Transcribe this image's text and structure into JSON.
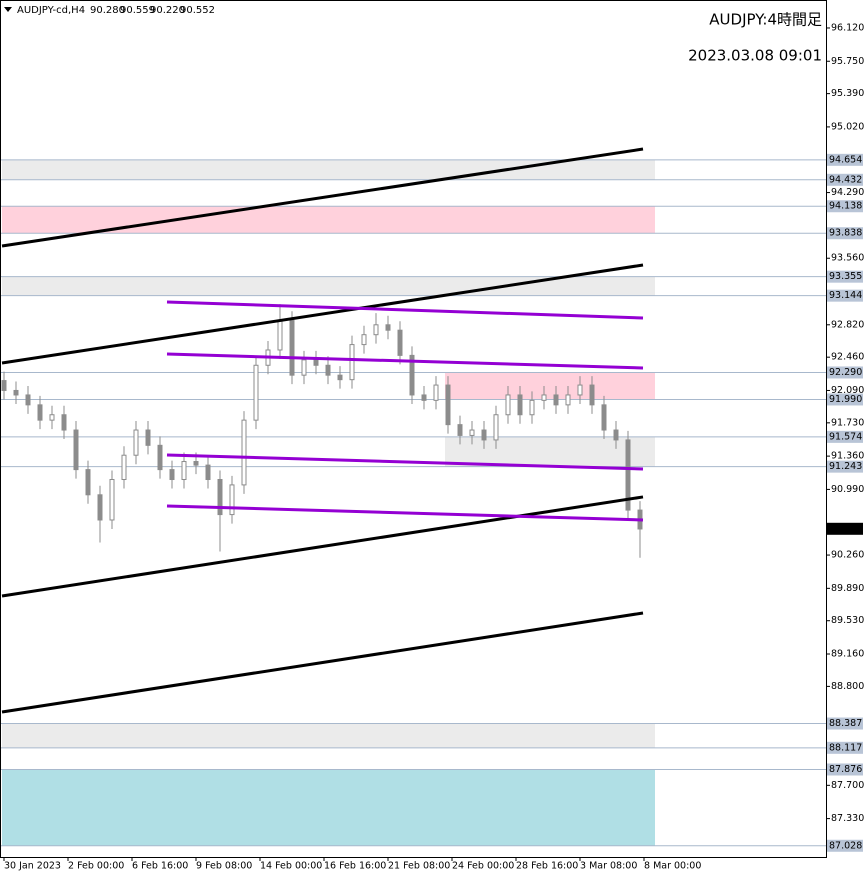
{
  "chart_data": {
    "type": "candlestick",
    "symbol": "AUDJPY-cd,H4",
    "ohlc_text": [
      "90.280",
      "90.559",
      "90.220",
      "90.552"
    ],
    "annotations": [
      "AUDJPY:4時間足",
      "2023.03.08 09:01"
    ],
    "time_labels": [
      "30 Jan 2023",
      "2 Feb 00:00",
      "6 Feb 16:00",
      "9 Feb 08:00",
      "14 Feb 00:00",
      "16 Feb 16:00",
      "21 Feb 08:00",
      "24 Feb 00:00",
      "28 Feb 16:00",
      "3 Mar 08:00",
      "8 Mar 00:00"
    ],
    "ylim": [
      86.892,
      96.431
    ],
    "yticks": [
      {
        "value": 96.12,
        "label": "96.120"
      },
      {
        "value": 95.75,
        "label": "95.750"
      },
      {
        "value": 95.39,
        "label": "95.390"
      },
      {
        "value": 95.02,
        "label": "95.020"
      },
      {
        "value": 94.29,
        "label": "94.290"
      },
      {
        "value": 93.56,
        "label": "93.560"
      },
      {
        "value": 92.82,
        "label": "92.820"
      },
      {
        "value": 92.46,
        "label": "92.460"
      },
      {
        "value": 92.09,
        "label": "92.090"
      },
      {
        "value": 91.73,
        "label": "91.730"
      },
      {
        "value": 91.36,
        "label": "91.360"
      },
      {
        "value": 90.99,
        "label": "90.990"
      },
      {
        "value": 90.26,
        "label": "90.260"
      },
      {
        "value": 89.89,
        "label": "89.890"
      },
      {
        "value": 89.53,
        "label": "89.530"
      },
      {
        "value": 89.16,
        "label": "89.160"
      },
      {
        "value": 88.8,
        "label": "88.800"
      },
      {
        "value": 87.7,
        "label": "87.700"
      },
      {
        "value": 87.33,
        "label": "87.330"
      }
    ],
    "levels": [
      94.654,
      94.432,
      94.138,
      93.838,
      93.355,
      93.144,
      92.29,
      91.99,
      91.574,
      91.243,
      88.387,
      88.117,
      87.876,
      87.028
    ],
    "level_labels": [
      "94.654",
      "94.432",
      "94.138",
      "93.838",
      "93.355",
      "93.144",
      "92.290",
      "91.990",
      "91.574",
      "91.243",
      "88.387",
      "88.117",
      "87.876",
      "87.028"
    ],
    "zones": [
      {
        "low": 94.432,
        "high": 94.654,
        "color": "#ebebeb"
      },
      {
        "low": 93.838,
        "high": 94.138,
        "color": "#ffd1dc"
      },
      {
        "low": 93.144,
        "high": 93.355,
        "color": "#ebebeb"
      },
      {
        "low": 91.99,
        "high": 92.29,
        "color": "#ffd1dc"
      },
      {
        "low": 91.243,
        "high": 91.574,
        "color": "#ebebeb"
      },
      {
        "low": 88.117,
        "high": 88.387,
        "color": "#ebebeb"
      },
      {
        "low": 87.028,
        "high": 87.876,
        "color": "#b0dfe5"
      }
    ],
    "current_price": 90.552,
    "trend_lines": [
      {
        "color": "#000000",
        "start": 93.696,
        "end": 94.774
      },
      {
        "color": "#000000",
        "start": 92.395,
        "end": 93.485
      },
      {
        "color": "#000000",
        "start": 89.805,
        "end": 90.906
      },
      {
        "color": "#000000",
        "start": 88.515,
        "end": 89.616
      },
      {
        "color": "#9400d3",
        "start": 93.074,
        "end": 92.896
      },
      {
        "color": "#9400d3",
        "start": 92.495,
        "end": 92.34
      },
      {
        "color": "#9400d3",
        "start": 91.373,
        "end": 91.217
      },
      {
        "color": "#9400d3",
        "start": 90.806,
        "end": 90.65
      }
    ],
    "color": "#8c8c8c",
    "open": [
      92.2,
      92.09,
      92.04,
      91.93,
      91.76,
      91.82,
      91.65,
      91.21,
      90.93,
      90.65,
      91.1,
      91.37,
      91.65,
      91.48,
      91.21,
      91.1,
      91.3,
      91.26,
      91.1,
      90.71,
      91.04,
      91.76,
      92.37,
      92.54,
      92.87,
      92.26,
      92.43,
      92.37,
      92.26,
      92.21,
      92.6,
      92.71,
      92.82,
      92.76,
      92.48,
      92.04,
      91.98,
      92.15,
      91.71,
      91.59,
      91.65,
      91.54,
      91.82,
      92.04,
      91.82,
      91.98,
      92.04,
      91.93,
      92.04,
      92.15,
      91.93,
      91.65,
      91.54,
      90.76
    ],
    "high": [
      92.3,
      92.19,
      92.14,
      92.03,
      91.92,
      91.92,
      91.75,
      91.31,
      91.03,
      91.2,
      91.47,
      91.75,
      91.75,
      91.58,
      91.31,
      91.4,
      91.4,
      91.36,
      91.2,
      91.14,
      91.86,
      92.47,
      92.64,
      93.05,
      92.97,
      92.53,
      92.53,
      92.47,
      92.36,
      92.7,
      92.81,
      92.95,
      92.92,
      92.86,
      92.58,
      92.14,
      92.25,
      92.25,
      91.81,
      91.75,
      91.75,
      91.92,
      92.14,
      92.14,
      92.08,
      92.14,
      92.14,
      92.14,
      92.25,
      92.25,
      92.03,
      91.75,
      91.64,
      90.86
    ],
    "low": [
      91.99,
      91.94,
      91.83,
      91.66,
      91.66,
      91.55,
      91.11,
      90.83,
      90.4,
      90.55,
      91.0,
      91.27,
      91.38,
      91.11,
      91.0,
      91.0,
      91.16,
      91.0,
      90.3,
      90.61,
      90.94,
      91.66,
      92.27,
      92.44,
      92.16,
      92.16,
      92.27,
      92.16,
      92.11,
      92.11,
      92.5,
      92.61,
      92.66,
      92.38,
      91.94,
      91.88,
      91.88,
      91.61,
      91.49,
      91.49,
      91.44,
      91.44,
      91.72,
      91.72,
      91.72,
      91.88,
      91.83,
      91.83,
      91.94,
      91.83,
      91.55,
      91.44,
      90.66,
      90.23
    ],
    "close": [
      92.09,
      92.04,
      91.93,
      91.76,
      91.82,
      91.65,
      91.21,
      90.93,
      90.65,
      91.1,
      91.37,
      91.65,
      91.48,
      91.21,
      91.1,
      91.3,
      91.26,
      91.1,
      90.71,
      91.04,
      91.76,
      92.37,
      92.54,
      92.87,
      92.26,
      92.43,
      92.37,
      92.26,
      92.21,
      92.6,
      92.71,
      92.82,
      92.76,
      92.48,
      92.04,
      91.98,
      92.15,
      91.71,
      91.59,
      91.65,
      91.54,
      91.82,
      92.04,
      91.82,
      91.98,
      92.04,
      91.93,
      92.04,
      92.15,
      91.93,
      91.65,
      91.54,
      90.76,
      90.55
    ]
  }
}
